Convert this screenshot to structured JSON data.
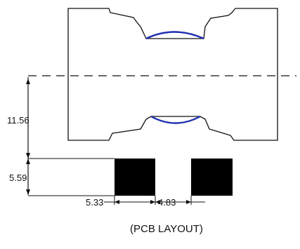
{
  "dimensions": {
    "height_total": "11.56",
    "pad_height": "5.59",
    "pad_width": "5.33",
    "pad_gap": "4.83"
  },
  "caption": "(PCB LAYOUT)",
  "colors": {
    "outline": "#111111",
    "lens_arc": "#1f2fb0",
    "pad_fill": "#000000"
  }
}
